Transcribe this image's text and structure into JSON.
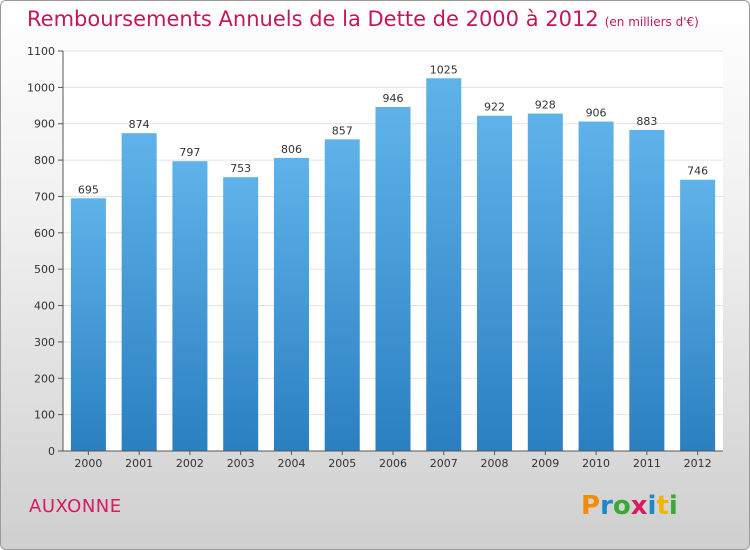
{
  "title": "Remboursements Annuels de la Dette de 2000 à 2012",
  "unit": "(en milliers d'€)",
  "city": "AUXONNE",
  "logo": {
    "letters": [
      "P",
      "r",
      "o",
      "x",
      "i",
      "t",
      "i"
    ],
    "colors": [
      "#f28c00",
      "#1e88c8",
      "#3aa935",
      "#d81b60",
      "#1e88c8",
      "#f2b600",
      "#3aa935"
    ],
    "text": "Proxiti"
  },
  "chart_data": {
    "type": "bar",
    "categories": [
      "2000",
      "2001",
      "2002",
      "2003",
      "2004",
      "2005",
      "2006",
      "2007",
      "2008",
      "2009",
      "2010",
      "2011",
      "2012"
    ],
    "values": [
      695,
      874,
      797,
      753,
      806,
      857,
      946,
      1025,
      922,
      928,
      906,
      883,
      746
    ],
    "data_labels": [
      "695",
      "874",
      "797",
      "753",
      "806",
      "857",
      "946",
      "1025",
      "922",
      "928",
      "906",
      "883",
      "746"
    ],
    "title": "Remboursements Annuels de la Dette de 2000 à 2012",
    "ylim": [
      0,
      1100
    ],
    "yticks": [
      0,
      100,
      200,
      300,
      400,
      500,
      600,
      700,
      800,
      900,
      1000,
      1100
    ],
    "grid": true,
    "bar_color": "#4aa3e0"
  }
}
